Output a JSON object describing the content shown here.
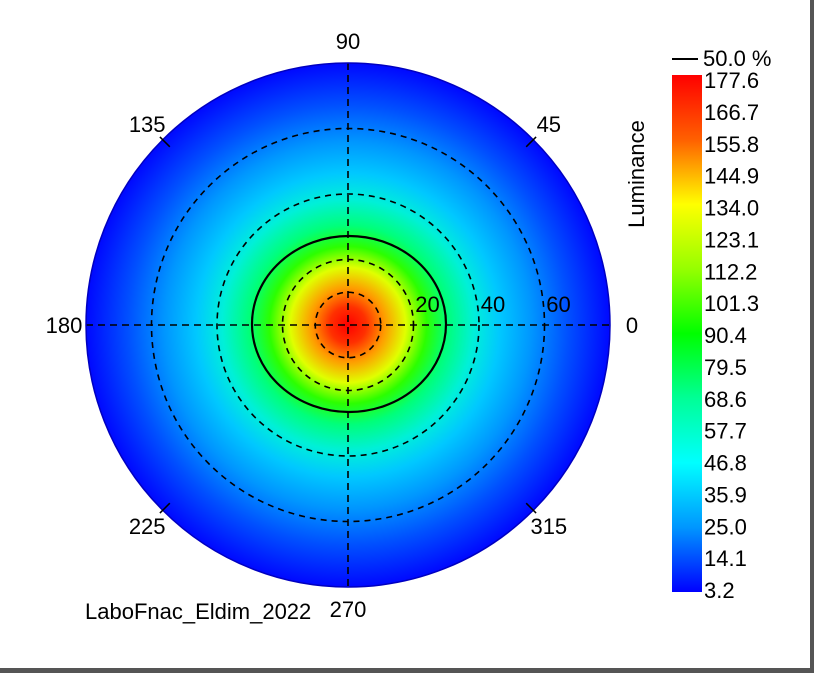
{
  "chart_data": {
    "type": "heatmap",
    "subtype": "polar-conoscope",
    "azimuth_labels": [
      "0",
      "45",
      "90",
      "135",
      "180",
      "225",
      "270",
      "315"
    ],
    "inclination_labels": [
      "20",
      "40",
      "60"
    ],
    "inclination_max": 80,
    "contour": {
      "label": "50.0 %",
      "value": 88.8
    },
    "colorbar": {
      "title": "Luminance",
      "min": 3.2,
      "max": 177.6,
      "ticks": [
        "177.6",
        "166.7",
        "155.8",
        "144.9",
        "134.0",
        "123.1",
        "112.2",
        "101.3",
        "90.4",
        "79.5",
        "68.6",
        "57.7",
        "46.8",
        "35.9",
        "25.0",
        "14.1",
        "3.2"
      ]
    },
    "peak": {
      "inclination": 0,
      "value": 177.6
    },
    "edge_value": 3.2,
    "grid": true
  },
  "footer": {
    "caption": "LaboFnac_Eldim_2022"
  },
  "colors": {
    "scale": [
      "#0000ff",
      "#0064ff",
      "#00c8ff",
      "#00ff96",
      "#00ff00",
      "#96ff00",
      "#ffff00",
      "#ff9600",
      "#ff0000"
    ],
    "grid": "#000000"
  }
}
